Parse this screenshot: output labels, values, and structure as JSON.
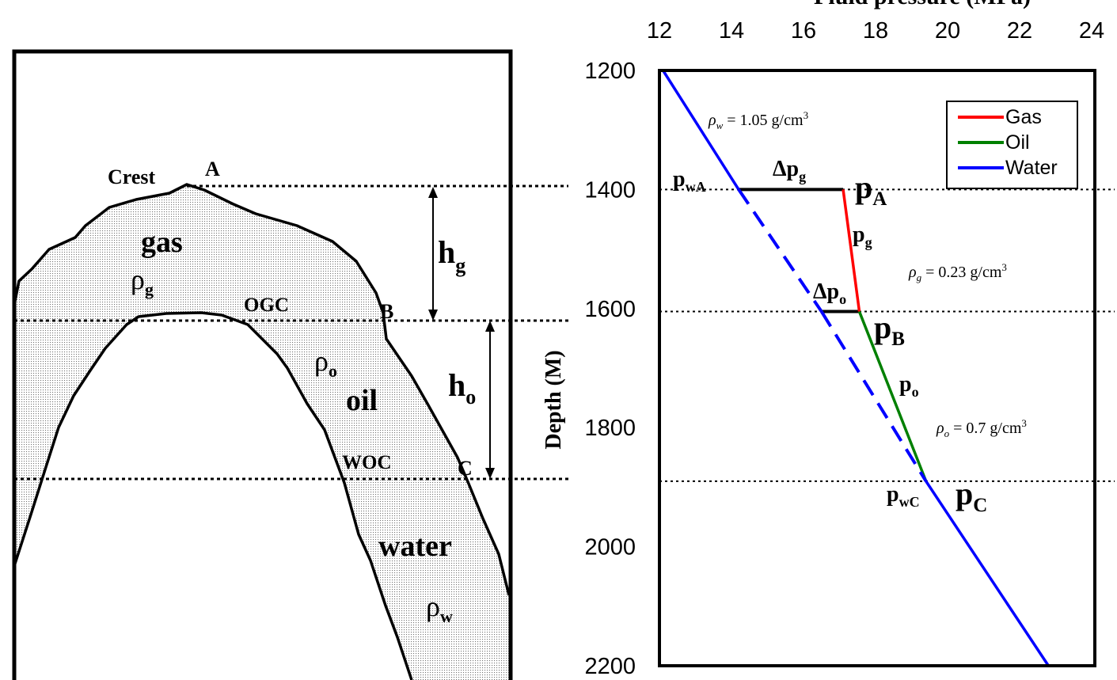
{
  "left_panel": {
    "labels": {
      "crest": "Crest",
      "point_a": "A",
      "point_b": "B",
      "point_c": "C",
      "gas": "gas",
      "rho_g_sym": "ρ",
      "rho_g_sub": "g",
      "ogc": "OGC",
      "rho_o_sym": "ρ",
      "rho_o_sub": "o",
      "oil": "oil",
      "woc": "WOC",
      "water": "water",
      "rho_w_sym": "ρ",
      "rho_w_sub": "w",
      "hg_main": "h",
      "hg_sub": "g",
      "ho_main": "h",
      "ho_sub": "o"
    }
  },
  "chart_data": {
    "type": "line",
    "title": "Fluid pressure (MPa)",
    "xlabel": "Fluid pressure (MPa)",
    "ylabel": "Depth (M)",
    "xlim": [
      12,
      24
    ],
    "ylim": [
      1200,
      2200
    ],
    "y_inverted": true,
    "x_ticks": [
      12,
      14,
      16,
      18,
      20,
      22,
      24
    ],
    "y_ticks": [
      1200,
      1400,
      1600,
      1800,
      2000,
      2200
    ],
    "legend_position": "top-right",
    "series": [
      {
        "name": "Gas",
        "color": "#ff0000",
        "points": [
          [
            17.1,
            1400
          ],
          [
            17.55,
            1605
          ]
        ]
      },
      {
        "name": "Oil",
        "color": "#008000",
        "points": [
          [
            17.55,
            1605
          ],
          [
            19.4,
            1890
          ]
        ]
      },
      {
        "name": "Water",
        "color": "#0000ff",
        "points": [
          [
            12.1,
            1200
          ],
          [
            14.2,
            1400
          ],
          [
            16.5,
            1605
          ],
          [
            19.4,
            1890
          ],
          [
            22.8,
            2200
          ]
        ]
      }
    ],
    "water_dashed_between_depths": [
      1400,
      1890
    ],
    "horizontal_markers": [
      {
        "from": [
          14.2,
          1400
        ],
        "to": [
          17.1,
          1400
        ]
      },
      {
        "from": [
          16.5,
          1605
        ],
        "to": [
          17.55,
          1605
        ]
      }
    ],
    "reference_depths": [
      1400,
      1605,
      1890
    ],
    "annotations": {
      "rho_w": {
        "sym": "ρ",
        "sub": "w",
        "text": " = 1.05 g/cm",
        "sup": "3"
      },
      "rho_g": {
        "sym": "ρ",
        "sub": "g",
        "text": " = 0.23 g/cm",
        "sup": "3"
      },
      "rho_o": {
        "sym": "ρ",
        "sub": "o",
        "text": " = 0.7 g/cm",
        "sup": "3"
      },
      "delta_pg": {
        "main": "Δp",
        "sub": "g"
      },
      "delta_po": {
        "main": "Δp",
        "sub": "o"
      },
      "p_wA": {
        "main": "p",
        "sub": "wA"
      },
      "p_A": {
        "main": "p",
        "sub": "A"
      },
      "p_g": {
        "main": "p",
        "sub": "g"
      },
      "p_B": {
        "main": "p",
        "sub": "B"
      },
      "p_o": {
        "main": "p",
        "sub": "o"
      },
      "p_wC": {
        "main": "p",
        "sub": "wC"
      },
      "p_C": {
        "main": "p",
        "sub": "C"
      }
    }
  }
}
